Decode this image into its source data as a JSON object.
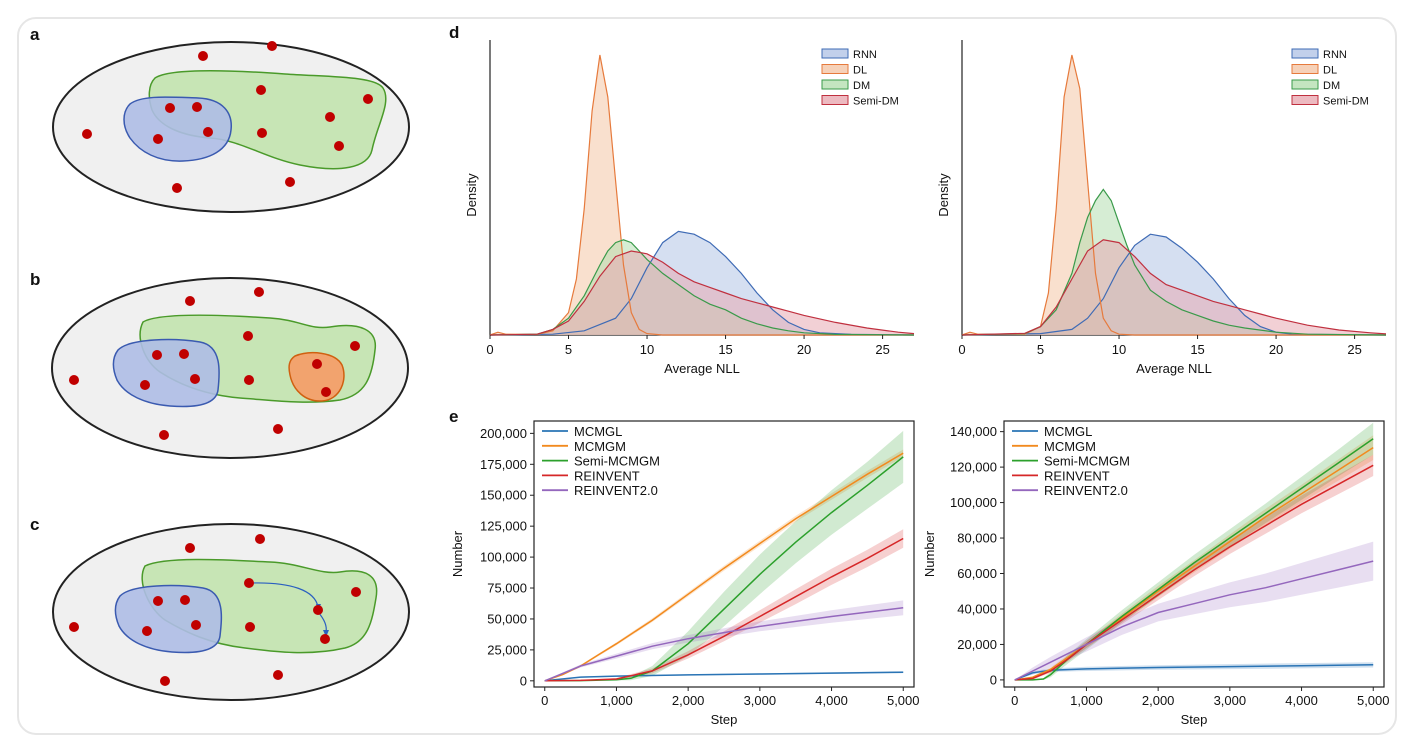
{
  "colors": {
    "ellipse_fill": "#f0f0f0",
    "blue_region": "#aebde6",
    "green_region": "#c7e5b5",
    "orange_region": "#f2a36e",
    "dot": "#c00000",
    "RNN": "#3f6bb5",
    "DL": "#e67a3c",
    "DM": "#3a9a4a",
    "SemiDM": "#c0303f",
    "MCMGL": "#2a74b5",
    "MCMGM": "#f28a1e",
    "SemiMCMGM": "#2ca02c",
    "REINVENT": "#d62728",
    "REINVENT2": "#9467bd"
  },
  "schematic": {
    "letters": [
      "a",
      "b",
      "c"
    ]
  },
  "panel_d_letter": "d",
  "panel_e_letter": "e",
  "chart_data": [
    {
      "type": "area",
      "id": "d-left",
      "xlabel": "Average NLL",
      "ylabel": "Density",
      "xlim": [
        0,
        27
      ],
      "xticks": [
        0,
        5,
        10,
        15,
        20,
        25
      ],
      "legend": [
        "RNN",
        "DL",
        "DM",
        "Semi-DM"
      ],
      "legend_position": "top-right",
      "series": [
        {
          "name": "RNN",
          "x": [
            0,
            4,
            6,
            8,
            9,
            10,
            11,
            12,
            13,
            14,
            15,
            16,
            17,
            18,
            19,
            20,
            21,
            23,
            27
          ],
          "y": [
            0,
            0.3,
            1.5,
            6,
            13,
            24,
            33,
            37,
            36,
            33,
            28,
            22,
            15,
            9,
            4.5,
            2,
            0.8,
            0.2,
            0
          ]
        },
        {
          "name": "DL",
          "x": [
            0,
            0.5,
            1,
            3,
            4,
            5,
            5.5,
            6,
            6.5,
            7,
            7.5,
            8,
            8.5,
            9,
            9.5,
            10,
            11,
            27
          ],
          "y": [
            0,
            1,
            0.3,
            0.2,
            1.5,
            8,
            20,
            45,
            80,
            100,
            85,
            55,
            25,
            8,
            2,
            0.5,
            0,
            0
          ]
        },
        {
          "name": "DM",
          "x": [
            0,
            3,
            4,
            5,
            6,
            7,
            7.5,
            8,
            8.5,
            9,
            9.5,
            10,
            11,
            12,
            13,
            14,
            15,
            16,
            17,
            18,
            19,
            20,
            22,
            27
          ],
          "y": [
            0,
            0.3,
            2,
            6,
            14,
            25,
            30,
            33,
            34,
            33,
            30,
            27,
            22,
            18,
            14,
            11,
            9,
            6,
            4,
            2.5,
            1.5,
            0.8,
            0.2,
            0
          ]
        },
        {
          "name": "Semi-DM",
          "x": [
            0,
            3,
            4,
            5,
            6,
            7,
            8,
            9,
            10,
            11,
            12,
            13,
            14,
            15,
            16,
            17,
            18,
            19,
            20,
            22,
            24,
            26,
            27
          ],
          "y": [
            0,
            0.3,
            2,
            5,
            12,
            21,
            28,
            30,
            29,
            26,
            22,
            19,
            17,
            15,
            13,
            11.5,
            10,
            8.5,
            7,
            4.5,
            2.5,
            1,
            0.5
          ]
        }
      ]
    },
    {
      "type": "area",
      "id": "d-right",
      "xlabel": "Average NLL",
      "ylabel": "Density",
      "xlim": [
        0,
        27
      ],
      "xticks": [
        0,
        5,
        10,
        15,
        20,
        25
      ],
      "legend": [
        "RNN",
        "DL",
        "DM",
        "Semi-DM"
      ],
      "legend_position": "top-right",
      "series": [
        {
          "name": "RNN",
          "x": [
            0,
            5,
            7,
            8,
            9,
            10,
            11,
            12,
            13,
            14,
            15,
            16,
            17,
            18,
            19,
            20,
            21,
            27
          ],
          "y": [
            0,
            0.5,
            2,
            6,
            13,
            24,
            32,
            36,
            35,
            31,
            26,
            20,
            13,
            7,
            3,
            1,
            0.3,
            0
          ]
        },
        {
          "name": "DL",
          "x": [
            0,
            0.5,
            1,
            4,
            5,
            5.5,
            6,
            6.5,
            7,
            7.5,
            8,
            8.5,
            9,
            9.5,
            10,
            11,
            27
          ],
          "y": [
            0,
            1,
            0.3,
            0.3,
            3,
            15,
            45,
            85,
            100,
            88,
            55,
            22,
            6,
            1.5,
            0.3,
            0,
            0
          ]
        },
        {
          "name": "DM",
          "x": [
            0,
            4,
            5,
            6,
            7,
            7.5,
            8,
            8.5,
            9,
            9.5,
            10,
            10.5,
            11,
            12,
            13,
            14,
            15,
            16,
            17,
            18,
            20,
            22,
            27
          ],
          "y": [
            0,
            0.5,
            3,
            9,
            22,
            33,
            42,
            48,
            52,
            48,
            40,
            32,
            25,
            16,
            12,
            9,
            7,
            5,
            3.5,
            2.5,
            1,
            0.3,
            0
          ]
        },
        {
          "name": "Semi-DM",
          "x": [
            0,
            4,
            5,
            6,
            7,
            8,
            9,
            10,
            11,
            12,
            13,
            14,
            15,
            16,
            17,
            18,
            19,
            20,
            22,
            24,
            26,
            27
          ],
          "y": [
            0,
            0.6,
            3,
            10,
            20,
            30,
            34,
            33,
            28,
            22,
            18,
            16,
            14,
            12,
            10.5,
            9,
            7.5,
            6,
            3.5,
            1.8,
            0.8,
            0.4
          ]
        }
      ]
    },
    {
      "type": "line",
      "id": "e-left",
      "xlabel": "Step",
      "ylabel": "Number",
      "xlim": [
        -150,
        5150
      ],
      "ylim": [
        -5000,
        210000
      ],
      "xticks": [
        0,
        1000,
        2000,
        3000,
        4000,
        5000
      ],
      "xtick_labels": [
        "0",
        "1,000",
        "2,000",
        "3,000",
        "4,000",
        "5,000"
      ],
      "yticks": [
        0,
        25000,
        50000,
        75000,
        100000,
        125000,
        150000,
        175000,
        200000
      ],
      "ytick_labels": [
        "0",
        "25,000",
        "50,000",
        "75,000",
        "100,000",
        "125,000",
        "150,000",
        "175,000",
        "200,000"
      ],
      "legend": [
        "MCMGL",
        "MCMGM",
        "Semi-MCMGM",
        "REINVENT",
        "REINVENT2.0"
      ],
      "legend_position": "top-left",
      "series": [
        {
          "name": "MCMGL",
          "x": [
            0,
            500,
            1000,
            2000,
            3000,
            4000,
            5000
          ],
          "y": [
            0,
            3000,
            3800,
            4800,
            5500,
            6200,
            7000
          ],
          "band": [
            0,
            500,
            500,
            500,
            600,
            700,
            800
          ]
        },
        {
          "name": "MCMGM",
          "x": [
            0,
            250,
            500,
            750,
            1000,
            1500,
            2000,
            2500,
            3000,
            3500,
            4000,
            4500,
            5000
          ],
          "y": [
            0,
            5000,
            12000,
            21000,
            30000,
            49000,
            70000,
            91000,
            111000,
            131000,
            149000,
            167000,
            184000
          ],
          "band": [
            0,
            500,
            800,
            1000,
            1200,
            1500,
            1800,
            2000,
            2200,
            2400,
            2600,
            2800,
            3000
          ]
        },
        {
          "name": "Semi-MCMGM",
          "x": [
            0,
            500,
            1000,
            1200,
            1500,
            2000,
            2500,
            3000,
            3500,
            4000,
            4500,
            5000
          ],
          "y": [
            0,
            200,
            800,
            2000,
            8000,
            30000,
            58000,
            86000,
            112000,
            136000,
            158000,
            181000
          ],
          "band": [
            0,
            200,
            500,
            1500,
            4000,
            10000,
            14000,
            16000,
            17000,
            18000,
            19000,
            21000
          ]
        },
        {
          "name": "REINVENT",
          "x": [
            0,
            500,
            1000,
            1500,
            2000,
            2500,
            3000,
            3500,
            4000,
            4500,
            5000
          ],
          "y": [
            0,
            300,
            1500,
            8000,
            21000,
            36000,
            52000,
            68000,
            84000,
            99000,
            115000
          ],
          "band": [
            0,
            200,
            800,
            2000,
            3000,
            4000,
            5000,
            6000,
            6500,
            7000,
            7500
          ]
        },
        {
          "name": "REINVENT2.0",
          "x": [
            0,
            250,
            500,
            1000,
            1500,
            2000,
            2500,
            3000,
            3500,
            4000,
            4500,
            5000
          ],
          "y": [
            0,
            6000,
            12000,
            20000,
            28000,
            34000,
            39000,
            44000,
            48000,
            52000,
            55500,
            59000
          ],
          "band": [
            0,
            800,
            1200,
            2000,
            2500,
            3000,
            3500,
            4000,
            4500,
            5000,
            5500,
            6000
          ]
        }
      ]
    },
    {
      "type": "line",
      "id": "e-right",
      "xlabel": "Step",
      "ylabel": "Number",
      "xlim": [
        -150,
        5150
      ],
      "ylim": [
        -4000,
        146000
      ],
      "xticks": [
        0,
        1000,
        2000,
        3000,
        4000,
        5000
      ],
      "xtick_labels": [
        "0",
        "1,000",
        "2,000",
        "3,000",
        "4,000",
        "5,000"
      ],
      "yticks": [
        0,
        20000,
        40000,
        60000,
        80000,
        100000,
        120000,
        140000
      ],
      "ytick_labels": [
        "0",
        "20,000",
        "40,000",
        "60,000",
        "80,000",
        "100,000",
        "120,000",
        "140,000"
      ],
      "legend": [
        "MCMGL",
        "MCMGM",
        "Semi-MCMGM",
        "REINVENT",
        "REINVENT2.0"
      ],
      "legend_position": "top-left",
      "series": [
        {
          "name": "MCMGL",
          "x": [
            0,
            250,
            500,
            1000,
            2000,
            3000,
            4000,
            5000
          ],
          "y": [
            0,
            4000,
            5500,
            6200,
            7000,
            7500,
            8000,
            8500
          ],
          "band": [
            0,
            800,
            1000,
            1200,
            1300,
            1400,
            1500,
            1500
          ]
        },
        {
          "name": "MCMGM",
          "x": [
            0,
            250,
            500,
            750,
            1000,
            1500,
            2000,
            2500,
            3000,
            3500,
            4000,
            4500,
            5000
          ],
          "y": [
            0,
            1500,
            6000,
            13000,
            20000,
            35000,
            50000,
            64000,
            78000,
            92000,
            105000,
            118000,
            131000
          ],
          "band": [
            0,
            500,
            1000,
            1500,
            2000,
            2500,
            3000,
            3500,
            4000,
            4500,
            5000,
            6000,
            7000
          ]
        },
        {
          "name": "Semi-MCMGM",
          "x": [
            0,
            250,
            400,
            500,
            750,
            1000,
            1500,
            2000,
            2500,
            3000,
            3500,
            4000,
            4500,
            5000
          ],
          "y": [
            0,
            0,
            500,
            3000,
            12000,
            20000,
            36000,
            51000,
            66000,
            80000,
            94000,
            108000,
            122000,
            136000
          ],
          "band": [
            0,
            0,
            500,
            1500,
            2500,
            3000,
            3500,
            4000,
            4500,
            5000,
            5500,
            6500,
            7500,
            9000
          ]
        },
        {
          "name": "REINVENT",
          "x": [
            0,
            250,
            500,
            750,
            1000,
            1500,
            2000,
            2500,
            3000,
            3500,
            4000,
            4500,
            5000
          ],
          "y": [
            0,
            800,
            5000,
            12000,
            20000,
            34000,
            48000,
            62000,
            75000,
            87000,
            99000,
            110000,
            121000
          ],
          "band": [
            0,
            500,
            1000,
            1500,
            2000,
            2500,
            3000,
            3500,
            4000,
            4500,
            5000,
            5500,
            6000
          ]
        },
        {
          "name": "REINVENT2.0",
          "x": [
            0,
            250,
            500,
            750,
            1000,
            1500,
            2000,
            2500,
            3000,
            3500,
            4000,
            4500,
            5000
          ],
          "y": [
            0,
            5000,
            10000,
            15000,
            20000,
            30000,
            38000,
            43000,
            48000,
            52000,
            57000,
            62000,
            67000
          ],
          "band": [
            0,
            2000,
            3000,
            3500,
            4000,
            4500,
            5000,
            6000,
            7000,
            8000,
            9000,
            10000,
            11000
          ]
        }
      ]
    }
  ]
}
